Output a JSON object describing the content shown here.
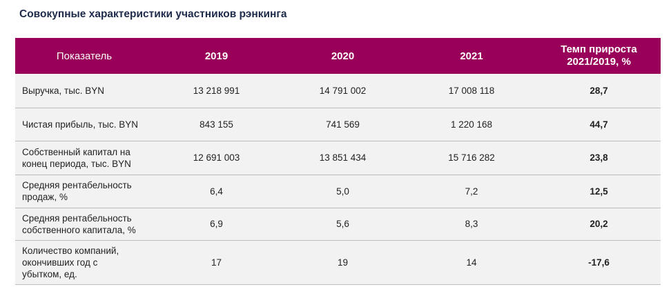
{
  "title": "Совокупные характеристики участников рэнкинга",
  "table": {
    "headers": {
      "indicator": "Показатель",
      "y2019": "2019",
      "y2020": "2020",
      "y2021": "2021",
      "growth_line1": "Темп прироста",
      "growth_line2": "2021/2019, %"
    },
    "rows": [
      {
        "name": "Выручка, тыс. BYN",
        "v2019": "13 218 991",
        "v2020": "14 791 002",
        "v2021": "17 008 118",
        "growth": "28,7"
      },
      {
        "name": "Чистая прибыль, тыс. BYN",
        "v2019": "843 155",
        "v2020": "741 569",
        "v2021": "1 220 168",
        "growth": "44,7"
      },
      {
        "name_line1": "Собственный капитал на",
        "name_line2": "конец периода, тыс. BYN",
        "v2019": "12 691 003",
        "v2020": "13 851 434",
        "v2021": "15 716 282",
        "growth": "23,8"
      },
      {
        "name_line1": "Средняя рентабельность",
        "name_line2": "продаж, %",
        "v2019": "6,4",
        "v2020": "5,0",
        "v2021": "7,2",
        "growth": "12,5"
      },
      {
        "name_line1": "Средняя рентабельность",
        "name_line2": "собственного капитала, %",
        "v2019": "6,9",
        "v2020": "5,6",
        "v2021": "8,3",
        "growth": "20,2"
      },
      {
        "name_line1": "Количество компаний,",
        "name_line2": "окончивших год с",
        "name_line3": "убытком, ед.",
        "v2019": "17",
        "v2020": "19",
        "v2021": "14",
        "growth": "-17,6"
      }
    ]
  }
}
